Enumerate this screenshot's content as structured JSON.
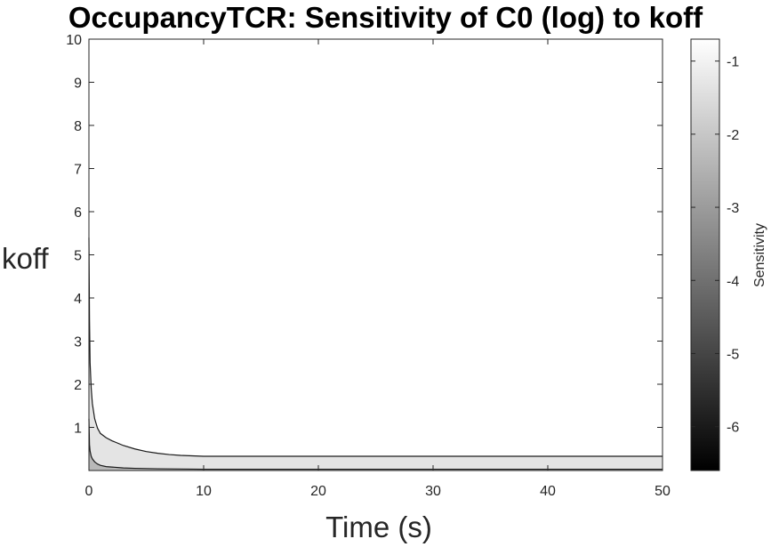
{
  "chart_data": {
    "type": "area",
    "title": "OccupancyTCR: Sensitivity of C0 (log) to koff",
    "xlabel": "Time (s)",
    "ylabel": "koff",
    "xlim": [
      0,
      50
    ],
    "ylim": [
      0,
      10
    ],
    "xticks": [
      0,
      10,
      20,
      30,
      40,
      50
    ],
    "yticks": [
      1,
      2,
      3,
      4,
      5,
      6,
      7,
      8,
      9,
      10
    ],
    "grid": false,
    "colorbar": {
      "label": "Sensitivity",
      "range": [
        -6.6,
        -0.7
      ],
      "ticks": [
        -1,
        -2,
        -3,
        -4,
        -5,
        -6
      ],
      "colormap": "gray"
    },
    "contours": [
      {
        "name": "upper",
        "x": [
          0,
          0.05,
          0.1,
          0.2,
          0.3,
          0.5,
          0.75,
          1,
          1.5,
          2,
          3,
          4,
          5,
          6,
          7,
          8,
          9,
          10,
          12,
          15,
          20,
          30,
          40,
          50
        ],
        "y": [
          5.4,
          3.5,
          2.5,
          1.9,
          1.55,
          1.2,
          0.98,
          0.86,
          0.76,
          0.69,
          0.58,
          0.5,
          0.44,
          0.4,
          0.37,
          0.35,
          0.34,
          0.33,
          0.33,
          0.33,
          0.33,
          0.33,
          0.33,
          0.33
        ]
      },
      {
        "name": "lower",
        "x": [
          0,
          0.05,
          0.1,
          0.2,
          0.3,
          0.5,
          0.75,
          1,
          1.5,
          2,
          3,
          4,
          5,
          6,
          8,
          10,
          15,
          20,
          30,
          40,
          50
        ],
        "y": [
          1.2,
          0.6,
          0.45,
          0.33,
          0.27,
          0.2,
          0.15,
          0.12,
          0.09,
          0.08,
          0.06,
          0.05,
          0.045,
          0.04,
          0.035,
          0.03,
          0.03,
          0.03,
          0.03,
          0.03,
          0.03
        ]
      }
    ],
    "fill_colors": {
      "above_upper": "#ffffff",
      "band": "#e4e4e4",
      "below_lower": "#b8b8b8"
    }
  }
}
